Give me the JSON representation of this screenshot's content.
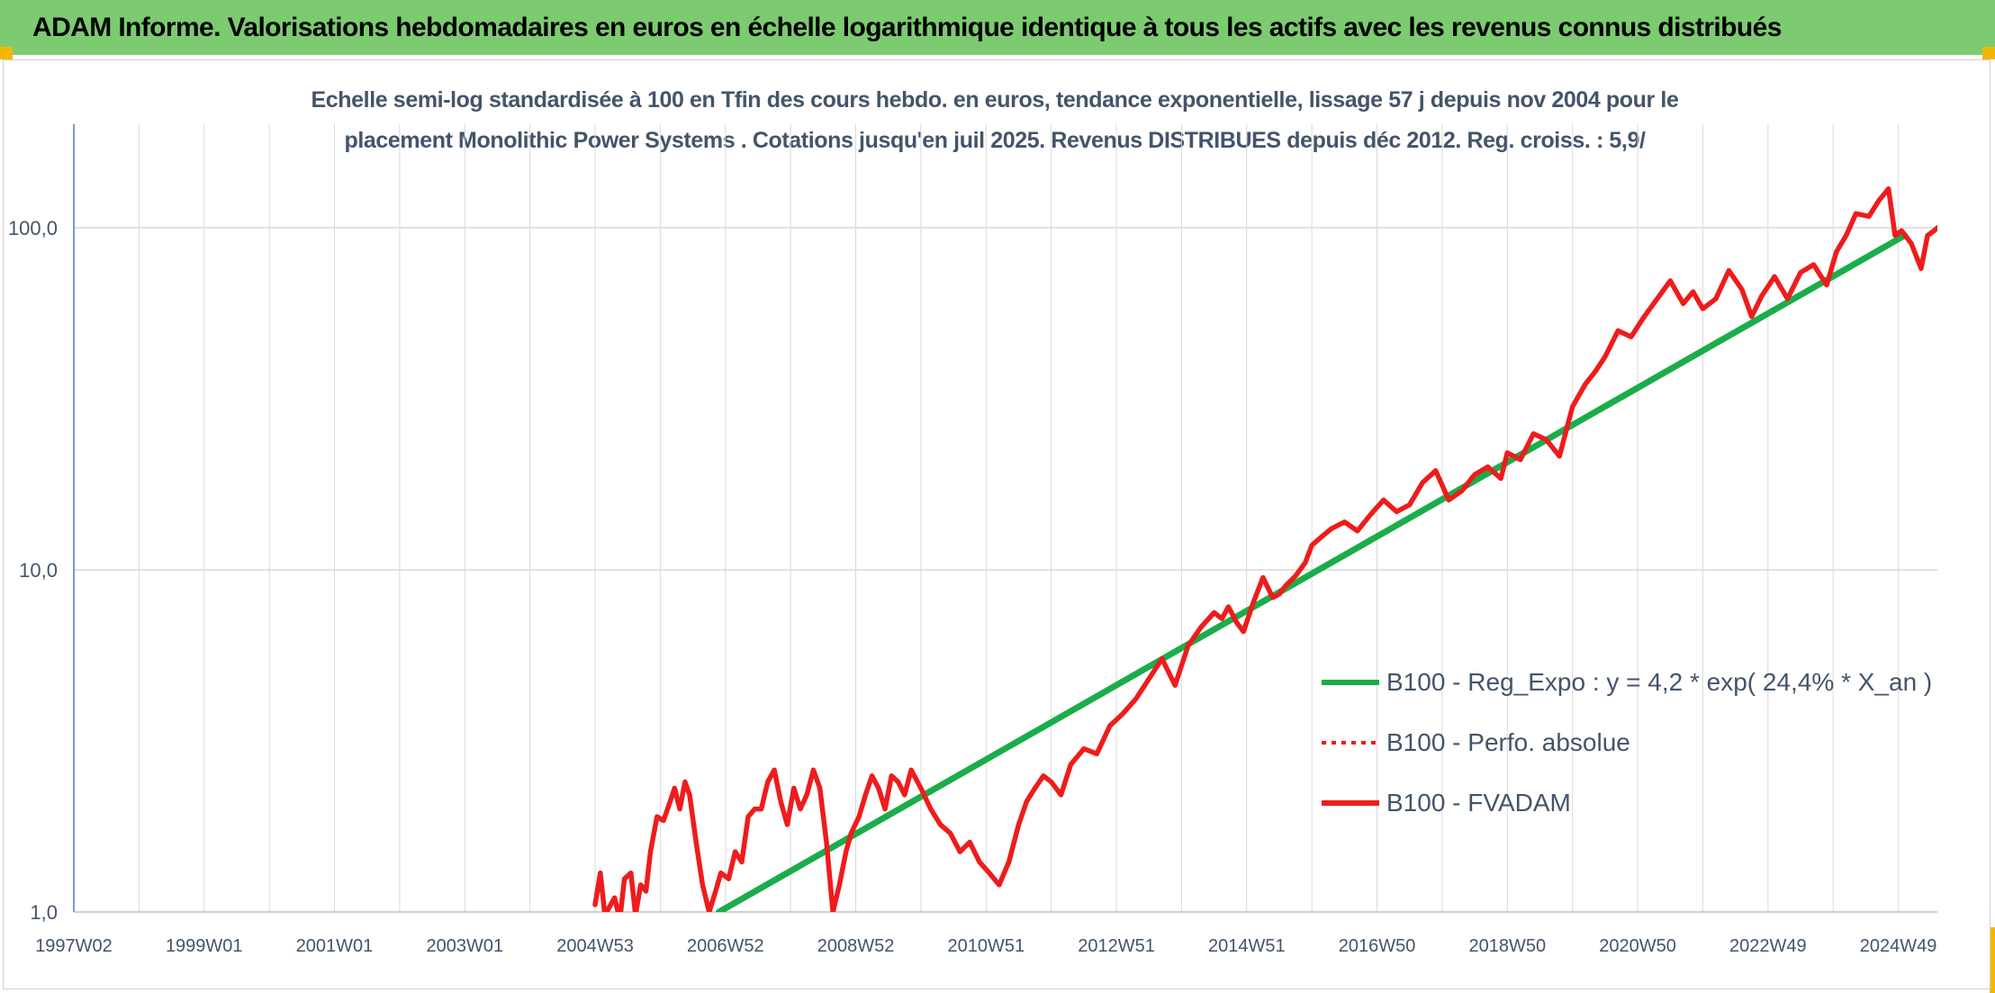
{
  "header": {
    "title": "ADAM Informe. Valorisations hebdomadaires en euros en échelle logarithmique identique à tous les actifs avec les revenus connus distribués"
  },
  "colors": {
    "banner": "#7ccb70",
    "corner": "#f2b705",
    "trend": "#1aad4a",
    "perf": "#ee1c1c",
    "axis_text": "#44546a"
  },
  "chart_data": {
    "type": "line",
    "title_line1": "Echelle semi-log standardisée à 100 en Tfin des cours hebdo. en euros, tendance exponentielle, lissage 57 j depuis nov 2004 pour le",
    "title_line2": "placement Monolithic Power Systems . Cotations jusqu'en juil 2025. Revenus DISTRIBUES depuis déc 2012. Reg. croiss. : 5,9/",
    "y_scale": "log",
    "ylim": [
      1,
      200
    ],
    "y_ticks": [
      {
        "value": 1,
        "label": "1,0"
      },
      {
        "value": 10,
        "label": "10,0"
      },
      {
        "value": 100,
        "label": "100,0"
      }
    ],
    "xlim": [
      1997.0,
      2025.6
    ],
    "x_ticks": [
      {
        "value": 1997.0,
        "label": "1997W02"
      },
      {
        "value": 1999.0,
        "label": "1999W01"
      },
      {
        "value": 2001.0,
        "label": "2001W01"
      },
      {
        "value": 2003.0,
        "label": "2003W01"
      },
      {
        "value": 2005.0,
        "label": "2004W53"
      },
      {
        "value": 2007.0,
        "label": "2006W52"
      },
      {
        "value": 2009.0,
        "label": "2008W52"
      },
      {
        "value": 2011.0,
        "label": "2010W51"
      },
      {
        "value": 2013.0,
        "label": "2012W51"
      },
      {
        "value": 2015.0,
        "label": "2014W51"
      },
      {
        "value": 2017.0,
        "label": "2016W50"
      },
      {
        "value": 2019.0,
        "label": "2018W50"
      },
      {
        "value": 2021.0,
        "label": "2020W50"
      },
      {
        "value": 2023.0,
        "label": "2022W49"
      },
      {
        "value": 2025.0,
        "label": "2024W49"
      }
    ],
    "grid": true,
    "legend_position": "right",
    "series": [
      {
        "name": "B100 - Reg_Expo : y = 4,2 * exp( 24,4% *  X_an )",
        "color": "#1aad4a",
        "style": "solid",
        "x": [
          2006.9,
          2025.1
        ],
        "y": [
          1.0,
          95
        ]
      },
      {
        "name": "B100 - Perfo. absolue",
        "color": "#ee1c1c",
        "style": "dotted",
        "x": [],
        "y": []
      },
      {
        "name": "B100 - FVADAM",
        "color": "#ee1c1c",
        "style": "solid",
        "x": [
          2005.0,
          2005.08,
          2005.15,
          2005.3,
          2005.38,
          2005.45,
          2005.55,
          2005.62,
          2005.7,
          2005.78,
          2005.85,
          2005.95,
          2006.05,
          2006.15,
          2006.22,
          2006.3,
          2006.38,
          2006.45,
          2006.55,
          2006.65,
          2006.75,
          2006.85,
          2006.93,
          2007.05,
          2007.15,
          2007.25,
          2007.35,
          2007.45,
          2007.55,
          2007.65,
          2007.75,
          2007.85,
          2007.95,
          2008.05,
          2008.15,
          2008.25,
          2008.35,
          2008.45,
          2008.55,
          2008.65,
          2008.75,
          2008.85,
          2008.93,
          2009.05,
          2009.15,
          2009.25,
          2009.35,
          2009.45,
          2009.55,
          2009.65,
          2009.75,
          2009.85,
          2010.0,
          2010.15,
          2010.3,
          2010.45,
          2010.6,
          2010.75,
          2010.9,
          2011.05,
          2011.2,
          2011.35,
          2011.5,
          2011.62,
          2011.75,
          2011.88,
          2012.0,
          2012.15,
          2012.3,
          2012.5,
          2012.7,
          2012.9,
          2013.1,
          2013.3,
          2013.5,
          2013.7,
          2013.9,
          2014.1,
          2014.3,
          2014.5,
          2014.62,
          2014.72,
          2014.85,
          2014.95,
          2015.1,
          2015.25,
          2015.4,
          2015.5,
          2015.6,
          2015.75,
          2015.9,
          2016.0,
          2016.15,
          2016.3,
          2016.5,
          2016.7,
          2016.9,
          2017.1,
          2017.3,
          2017.5,
          2017.7,
          2017.9,
          2018.1,
          2018.3,
          2018.5,
          2018.7,
          2018.9,
          2019.0,
          2019.2,
          2019.4,
          2019.6,
          2019.8,
          2020.0,
          2020.2,
          2020.35,
          2020.5,
          2020.7,
          2020.9,
          2021.1,
          2021.3,
          2021.5,
          2021.7,
          2021.85,
          2022.0,
          2022.2,
          2022.4,
          2022.6,
          2022.75,
          2022.9,
          2023.1,
          2023.3,
          2023.5,
          2023.7,
          2023.9,
          2024.05,
          2024.2,
          2024.35,
          2024.55,
          2024.7,
          2024.85,
          2024.95,
          2025.05,
          2025.2,
          2025.35,
          2025.45,
          2025.55,
          2025.6
        ],
        "y": [
          1.05,
          1.3,
          0.98,
          1.1,
          0.95,
          1.25,
          1.3,
          0.98,
          1.2,
          1.15,
          1.5,
          1.9,
          1.85,
          2.1,
          2.3,
          2.0,
          2.4,
          2.2,
          1.6,
          1.2,
          1.0,
          1.15,
          1.3,
          1.25,
          1.5,
          1.4,
          1.9,
          2.0,
          2.0,
          2.4,
          2.6,
          2.1,
          1.8,
          2.3,
          2.0,
          2.2,
          2.6,
          2.3,
          1.6,
          1.0,
          1.2,
          1.5,
          1.7,
          1.9,
          2.2,
          2.5,
          2.3,
          2.0,
          2.5,
          2.4,
          2.2,
          2.6,
          2.3,
          2.0,
          1.8,
          1.7,
          1.5,
          1.6,
          1.4,
          1.3,
          1.2,
          1.4,
          1.8,
          2.1,
          2.3,
          2.5,
          2.4,
          2.2,
          2.7,
          3.0,
          2.9,
          3.5,
          3.8,
          4.2,
          4.8,
          5.5,
          4.6,
          6.0,
          6.8,
          7.5,
          7.2,
          7.8,
          7.0,
          6.6,
          8.0,
          9.5,
          8.3,
          8.5,
          9.0,
          9.6,
          10.5,
          11.8,
          12.5,
          13.2,
          13.8,
          13.0,
          14.5,
          16.0,
          14.8,
          15.5,
          18.0,
          19.5,
          16.0,
          17.0,
          19.0,
          20.0,
          18.5,
          22.0,
          21.0,
          25.0,
          24.0,
          21.5,
          30.0,
          35.0,
          38.0,
          42.0,
          50.0,
          48.0,
          55.0,
          62.0,
          70.0,
          60.0,
          65.0,
          58.0,
          62.0,
          75.0,
          66.0,
          55.0,
          63.0,
          72.0,
          62.0,
          74.0,
          78.0,
          68.0,
          85.0,
          95.0,
          110.0,
          108.0,
          120.0,
          130.0,
          95.0,
          98.0,
          90.0,
          76.0,
          95.0,
          98.0,
          100.0
        ]
      }
    ]
  }
}
